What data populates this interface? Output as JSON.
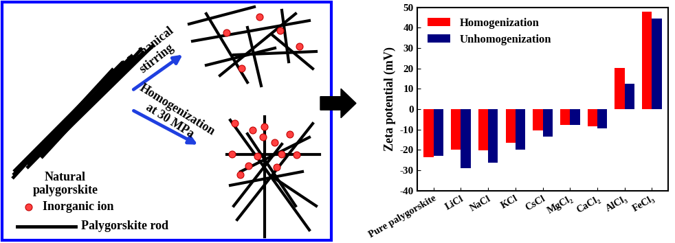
{
  "diagram": {
    "source": "Natural\npalygorskite",
    "top_arrow": "Mechanical\nstirring",
    "bottom_arrow": "Homogenization\nat 30 MPa",
    "legend_ion": "Inorganic ion",
    "legend_rod": "Palygorskite rod"
  },
  "chart_data": {
    "type": "bar",
    "ylabel": "Zeta potential (mV)",
    "categories": [
      "Pure palygorskite",
      "LiCl",
      "NaCl",
      "KCl",
      "CsCl",
      "MgCl₂",
      "CaCl₂",
      "AlCl₃",
      "FeCl₃"
    ],
    "series": [
      {
        "name": "Homogenization",
        "color": "#ff0000",
        "values": [
          -23.5,
          -20,
          -20.3,
          -16.5,
          -10.3,
          -7.8,
          -8.5,
          20.3,
          47.8
        ]
      },
      {
        "name": "Unhomogenization",
        "color": "#000080",
        "values": [
          -22.8,
          -29,
          -26.2,
          -20,
          -13.3,
          -7.8,
          -9.3,
          12.5,
          44.5
        ]
      }
    ],
    "ylim": [
      -40,
      50
    ],
    "yticks": [
      -40,
      -30,
      -20,
      -10,
      0,
      10,
      20,
      30,
      40,
      50
    ],
    "legend": "upper left"
  }
}
